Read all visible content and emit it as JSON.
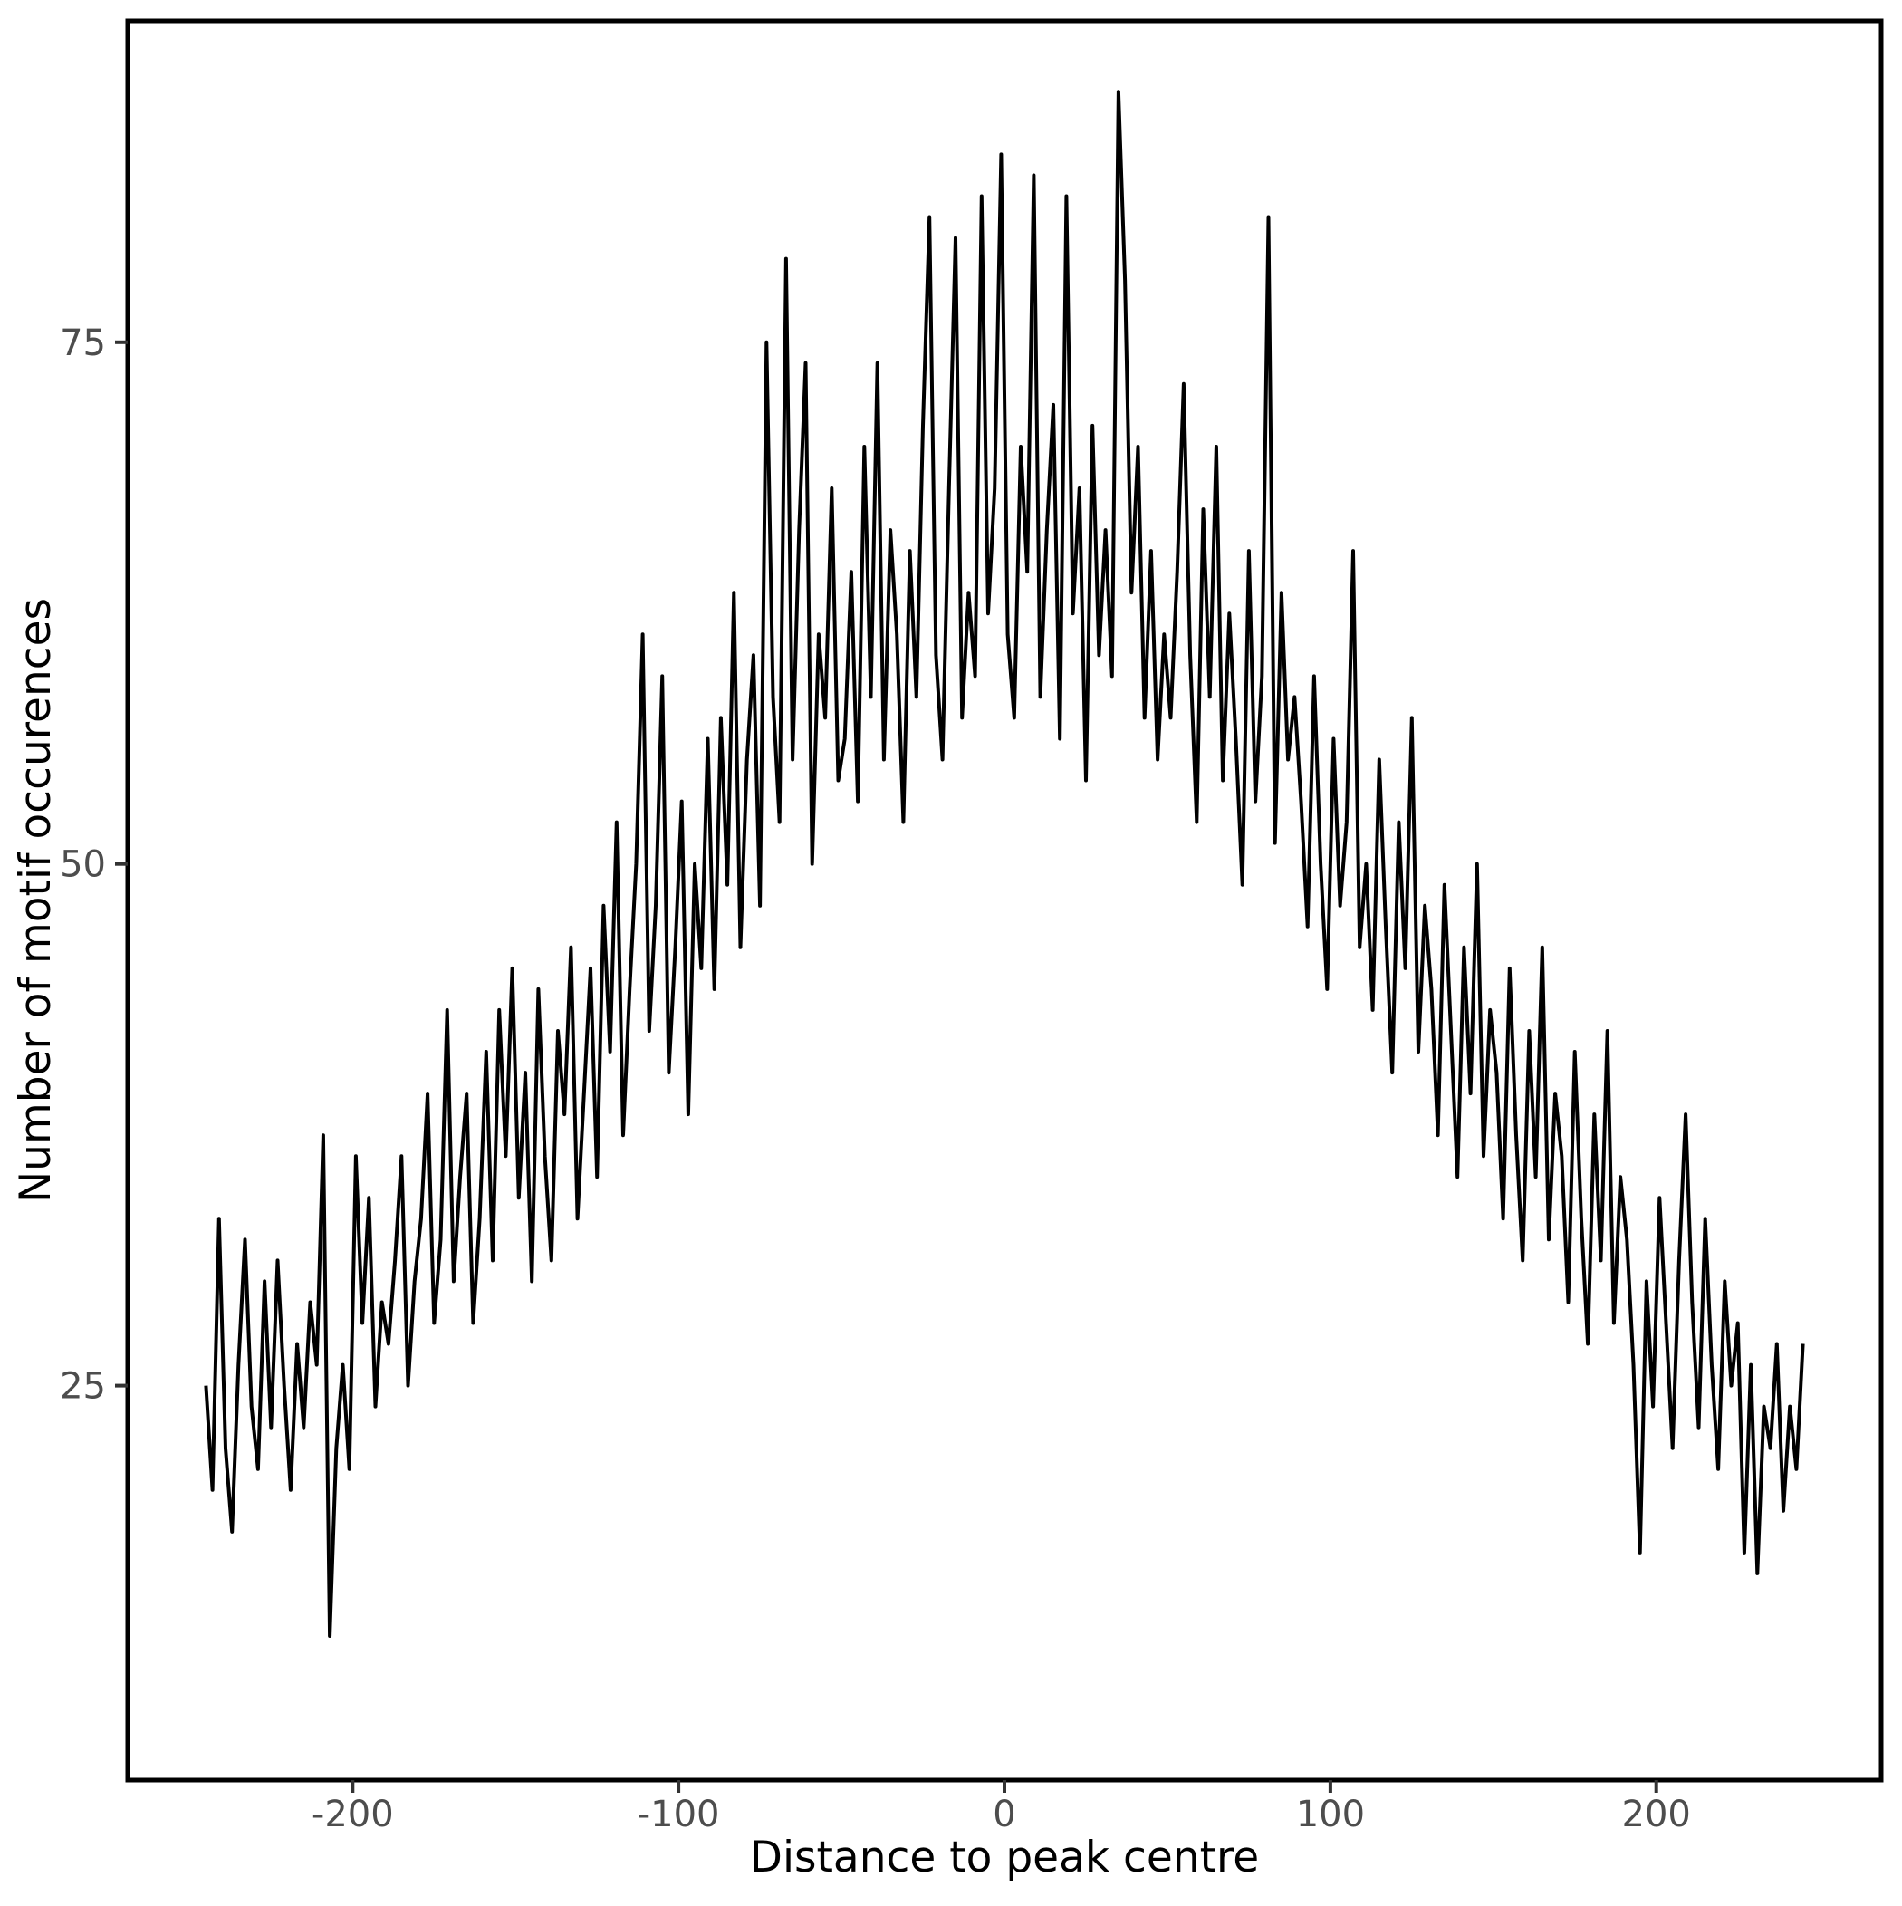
{
  "figure": {
    "background": "#ffffff"
  },
  "chart_data": {
    "type": "line",
    "title": "",
    "xlabel": "Distance to peak centre",
    "ylabel": "Number of motif occurences",
    "xlim": [
      -269,
      269
    ],
    "ylim": [
      6.1,
      90.4
    ],
    "x_ticks": [
      -200,
      -100,
      0,
      100,
      200
    ],
    "x_tick_labels": [
      "-200",
      "-100",
      "0",
      "100",
      "200"
    ],
    "y_ticks": [
      25,
      50,
      75
    ],
    "y_tick_labels": [
      "25",
      "50",
      "75"
    ],
    "grid": false,
    "legend_position": "none",
    "line_color": "#000000",
    "line_width": 4,
    "panel_border_color": "#000000",
    "tick_mark_color": "#333333",
    "tick_label_color": "#4d4d4d",
    "axis_title_color": "#000000",
    "series": [
      {
        "name": "Number of motif occurences",
        "points": [
          [
            -245,
            25
          ],
          [
            -243,
            20
          ],
          [
            -241,
            33
          ],
          [
            -239,
            22
          ],
          [
            -237,
            18
          ],
          [
            -235,
            26
          ],
          [
            -233,
            32
          ],
          [
            -231,
            24
          ],
          [
            -229,
            21
          ],
          [
            -227,
            30
          ],
          [
            -225,
            23
          ],
          [
            -223,
            31
          ],
          [
            -221,
            25
          ],
          [
            -219,
            20
          ],
          [
            -217,
            27
          ],
          [
            -215,
            23
          ],
          [
            -213,
            29
          ],
          [
            -211,
            26
          ],
          [
            -209,
            37
          ],
          [
            -207,
            13
          ],
          [
            -205,
            22
          ],
          [
            -203,
            26
          ],
          [
            -201,
            21
          ],
          [
            -199,
            36
          ],
          [
            -197,
            28
          ],
          [
            -195,
            34
          ],
          [
            -193,
            24
          ],
          [
            -191,
            29
          ],
          [
            -189,
            27
          ],
          [
            -187,
            31
          ],
          [
            -185,
            36
          ],
          [
            -183,
            25
          ],
          [
            -181,
            30
          ],
          [
            -179,
            33
          ],
          [
            -177,
            39
          ],
          [
            -175,
            28
          ],
          [
            -173,
            32
          ],
          [
            -171,
            43
          ],
          [
            -169,
            30
          ],
          [
            -167,
            35
          ],
          [
            -165,
            39
          ],
          [
            -163,
            28
          ],
          [
            -161,
            33
          ],
          [
            -159,
            41
          ],
          [
            -157,
            31
          ],
          [
            -155,
            43
          ],
          [
            -153,
            36
          ],
          [
            -151,
            45
          ],
          [
            -149,
            34
          ],
          [
            -147,
            40
          ],
          [
            -145,
            30
          ],
          [
            -143,
            44
          ],
          [
            -141,
            36
          ],
          [
            -139,
            31
          ],
          [
            -137,
            42
          ],
          [
            -135,
            38
          ],
          [
            -133,
            46
          ],
          [
            -131,
            33
          ],
          [
            -129,
            39
          ],
          [
            -127,
            45
          ],
          [
            -125,
            35
          ],
          [
            -123,
            48
          ],
          [
            -121,
            41
          ],
          [
            -119,
            52
          ],
          [
            -117,
            37
          ],
          [
            -115,
            44
          ],
          [
            -113,
            50
          ],
          [
            -111,
            61
          ],
          [
            -109,
            42
          ],
          [
            -107,
            48
          ],
          [
            -105,
            59
          ],
          [
            -103,
            40
          ],
          [
            -101,
            46
          ],
          [
            -99,
            53
          ],
          [
            -97,
            38
          ],
          [
            -95,
            50
          ],
          [
            -93,
            45
          ],
          [
            -91,
            56
          ],
          [
            -89,
            44
          ],
          [
            -87,
            57
          ],
          [
            -85,
            49
          ],
          [
            -83,
            63
          ],
          [
            -81,
            46
          ],
          [
            -79,
            55
          ],
          [
            -77,
            60
          ],
          [
            -75,
            48
          ],
          [
            -73,
            75
          ],
          [
            -71,
            58
          ],
          [
            -69,
            52
          ],
          [
            -67,
            79
          ],
          [
            -65,
            55
          ],
          [
            -63,
            66
          ],
          [
            -61,
            74
          ],
          [
            -59,
            50
          ],
          [
            -57,
            61
          ],
          [
            -55,
            57
          ],
          [
            -53,
            68
          ],
          [
            -51,
            54
          ],
          [
            -49,
            56
          ],
          [
            -47,
            64
          ],
          [
            -45,
            53
          ],
          [
            -43,
            70
          ],
          [
            -41,
            58
          ],
          [
            -39,
            74
          ],
          [
            -37,
            55
          ],
          [
            -35,
            66
          ],
          [
            -33,
            61
          ],
          [
            -31,
            52
          ],
          [
            -29,
            65
          ],
          [
            -27,
            58
          ],
          [
            -25,
            71
          ],
          [
            -23,
            81
          ],
          [
            -21,
            60
          ],
          [
            -19,
            55
          ],
          [
            -17,
            68
          ],
          [
            -15,
            80
          ],
          [
            -13,
            57
          ],
          [
            -11,
            63
          ],
          [
            -9,
            59
          ],
          [
            -7,
            82
          ],
          [
            -5,
            62
          ],
          [
            -3,
            68
          ],
          [
            -1,
            84
          ],
          [
            1,
            61
          ],
          [
            3,
            57
          ],
          [
            5,
            70
          ],
          [
            7,
            64
          ],
          [
            9,
            83
          ],
          [
            11,
            58
          ],
          [
            13,
            66
          ],
          [
            15,
            72
          ],
          [
            17,
            56
          ],
          [
            19,
            82
          ],
          [
            21,
            62
          ],
          [
            23,
            68
          ],
          [
            25,
            54
          ],
          [
            27,
            71
          ],
          [
            29,
            60
          ],
          [
            31,
            66
          ],
          [
            33,
            59
          ],
          [
            35,
            87
          ],
          [
            37,
            78
          ],
          [
            39,
            63
          ],
          [
            41,
            70
          ],
          [
            43,
            57
          ],
          [
            45,
            65
          ],
          [
            47,
            55
          ],
          [
            49,
            61
          ],
          [
            51,
            57
          ],
          [
            53,
            64
          ],
          [
            55,
            73
          ],
          [
            57,
            60
          ],
          [
            59,
            52
          ],
          [
            61,
            67
          ],
          [
            63,
            58
          ],
          [
            65,
            70
          ],
          [
            67,
            54
          ],
          [
            69,
            62
          ],
          [
            71,
            56
          ],
          [
            73,
            49
          ],
          [
            75,
            65
          ],
          [
            77,
            53
          ],
          [
            79,
            59
          ],
          [
            81,
            81
          ],
          [
            83,
            51
          ],
          [
            85,
            63
          ],
          [
            87,
            55
          ],
          [
            89,
            58
          ],
          [
            91,
            53
          ],
          [
            93,
            47
          ],
          [
            95,
            59
          ],
          [
            97,
            50
          ],
          [
            99,
            44
          ],
          [
            101,
            56
          ],
          [
            103,
            48
          ],
          [
            105,
            52
          ],
          [
            107,
            65
          ],
          [
            109,
            46
          ],
          [
            111,
            50
          ],
          [
            113,
            43
          ],
          [
            115,
            55
          ],
          [
            117,
            47
          ],
          [
            119,
            40
          ],
          [
            121,
            52
          ],
          [
            123,
            45
          ],
          [
            125,
            57
          ],
          [
            127,
            41
          ],
          [
            129,
            48
          ],
          [
            131,
            44
          ],
          [
            133,
            37
          ],
          [
            135,
            49
          ],
          [
            137,
            42
          ],
          [
            139,
            35
          ],
          [
            141,
            46
          ],
          [
            143,
            39
          ],
          [
            145,
            50
          ],
          [
            147,
            36
          ],
          [
            149,
            43
          ],
          [
            151,
            40
          ],
          [
            153,
            33
          ],
          [
            155,
            45
          ],
          [
            157,
            37
          ],
          [
            159,
            31
          ],
          [
            161,
            42
          ],
          [
            163,
            35
          ],
          [
            165,
            46
          ],
          [
            167,
            32
          ],
          [
            169,
            39
          ],
          [
            171,
            36
          ],
          [
            173,
            29
          ],
          [
            175,
            41
          ],
          [
            177,
            33
          ],
          [
            179,
            27
          ],
          [
            181,
            38
          ],
          [
            183,
            31
          ],
          [
            185,
            42
          ],
          [
            187,
            28
          ],
          [
            189,
            35
          ],
          [
            191,
            32
          ],
          [
            193,
            26
          ],
          [
            195,
            17
          ],
          [
            197,
            30
          ],
          [
            199,
            24
          ],
          [
            201,
            34
          ],
          [
            203,
            28
          ],
          [
            205,
            22
          ],
          [
            207,
            31
          ],
          [
            209,
            38
          ],
          [
            211,
            29
          ],
          [
            213,
            23
          ],
          [
            215,
            33
          ],
          [
            217,
            26
          ],
          [
            219,
            21
          ],
          [
            221,
            30
          ],
          [
            223,
            25
          ],
          [
            225,
            28
          ],
          [
            227,
            17
          ],
          [
            229,
            26
          ],
          [
            231,
            16
          ],
          [
            233,
            24
          ],
          [
            235,
            22
          ],
          [
            237,
            27
          ],
          [
            239,
            19
          ],
          [
            241,
            24
          ],
          [
            243,
            21
          ],
          [
            245,
            27
          ]
        ]
      }
    ]
  }
}
